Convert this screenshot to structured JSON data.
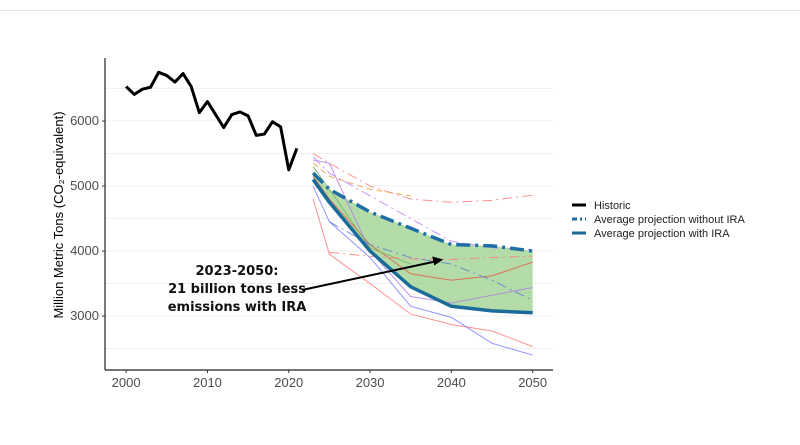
{
  "chart_data": {
    "type": "line",
    "title": "",
    "xlabel": "",
    "ylabel": "Million Metric Tons (CO₂-equivalent)",
    "xlim": [
      1997.4,
      2052.5
    ],
    "ylim": [
      2170,
      6970
    ],
    "grid": true,
    "x_ticks": [
      2000,
      2010,
      2020,
      2030,
      2040,
      2050
    ],
    "y_ticks": [
      3000,
      4000,
      5000,
      6000
    ],
    "legend_position": "right",
    "series": [
      {
        "name": "Historic",
        "color": "#000000",
        "style": "solid",
        "x": [
          2000,
          2001,
          2002,
          2003,
          2004,
          2005,
          2006,
          2007,
          2008,
          2009,
          2010,
          2011,
          2012,
          2013,
          2014,
          2015,
          2016,
          2017,
          2018,
          2019,
          2020,
          2021
        ],
        "y": [
          6530,
          6410,
          6490,
          6520,
          6750,
          6700,
          6600,
          6730,
          6530,
          6130,
          6300,
          6100,
          5900,
          6100,
          6140,
          6080,
          5780,
          5800,
          5990,
          5910,
          5250,
          5580
        ]
      },
      {
        "name": "Average projection without IRA",
        "color": "#1f6fa6",
        "style": "dashdot",
        "x": [
          2023,
          2025,
          2030,
          2035,
          2040,
          2045,
          2050
        ],
        "y": [
          5200,
          4950,
          4600,
          4350,
          4100,
          4080,
          4000
        ]
      },
      {
        "name": "Average projection with IRA",
        "color": "#1a6a9a",
        "style": "solid",
        "x": [
          2023,
          2025,
          2030,
          2035,
          2040,
          2045,
          2050
        ],
        "y": [
          5100,
          4750,
          4000,
          3450,
          3150,
          3080,
          3050
        ]
      }
    ],
    "model_lines": [
      {
        "color": "#ff7f7f",
        "style": "solid",
        "x": [
          2023,
          2025,
          2030,
          2035,
          2040,
          2045,
          2050
        ],
        "y": [
          4800,
          3950,
          3500,
          3030,
          2870,
          2770,
          2530
        ]
      },
      {
        "color": "#8080ff",
        "style": "solid",
        "x": [
          2023,
          2025,
          2030,
          2035,
          2040,
          2045,
          2050
        ],
        "y": [
          5000,
          4450,
          3900,
          3150,
          2980,
          2580,
          2400
        ]
      },
      {
        "color": "#e06050",
        "style": "solid",
        "x": [
          2023,
          2025,
          2030,
          2035,
          2040,
          2045,
          2050
        ],
        "y": [
          5150,
          4800,
          4100,
          3650,
          3550,
          3620,
          3830
        ]
      },
      {
        "color": "#b080e0",
        "style": "solid",
        "x": [
          2023,
          2025,
          2030,
          2035,
          2040,
          2045,
          2050
        ],
        "y": [
          5400,
          5350,
          4000,
          3300,
          3200,
          3320,
          3440
        ]
      },
      {
        "color": "#80b060",
        "style": "solid",
        "x": [
          2023,
          2025,
          2030,
          2035
        ],
        "y": [
          5300,
          4950,
          4050,
          3800
        ]
      },
      {
        "color": "#ff7f7f",
        "style": "dashdot",
        "x": [
          2023,
          2025,
          2030,
          2035,
          2040,
          2045,
          2050
        ],
        "y": [
          5500,
          5350,
          5000,
          4800,
          4750,
          4780,
          4860
        ]
      },
      {
        "color": "#f0a040",
        "style": "dashed",
        "x": [
          2023,
          2025,
          2030,
          2035
        ],
        "y": [
          5350,
          5150,
          4950,
          4850
        ]
      },
      {
        "color": "#c080ff",
        "style": "dashdot",
        "x": [
          2023,
          2025,
          2030,
          2035,
          2040,
          2045,
          2050
        ],
        "y": [
          5450,
          5200,
          4850,
          4500,
          4150,
          4050,
          4020
        ]
      },
      {
        "color": "#6080d0",
        "style": "dashdot",
        "x": [
          2025,
          2030,
          2035,
          2040,
          2045,
          2050
        ],
        "y": [
          4450,
          4100,
          3900,
          3800,
          3550,
          3240
        ]
      },
      {
        "color": "#ff8080",
        "style": "dashdot",
        "x": [
          2025,
          2030,
          2035,
          2040,
          2045,
          2050
        ],
        "y": [
          3980,
          3920,
          3880,
          3870,
          3900,
          3920
        ]
      }
    ],
    "shaded_band": {
      "between": [
        "Average projection without IRA",
        "Average projection with IRA"
      ],
      "color": "#8cc97a"
    },
    "annotation": {
      "lines": [
        "2023-2050:",
        "21 billion tons less",
        "emissions with IRA"
      ],
      "arrow_to": {
        "x": 2039,
        "y": 3870
      }
    }
  }
}
